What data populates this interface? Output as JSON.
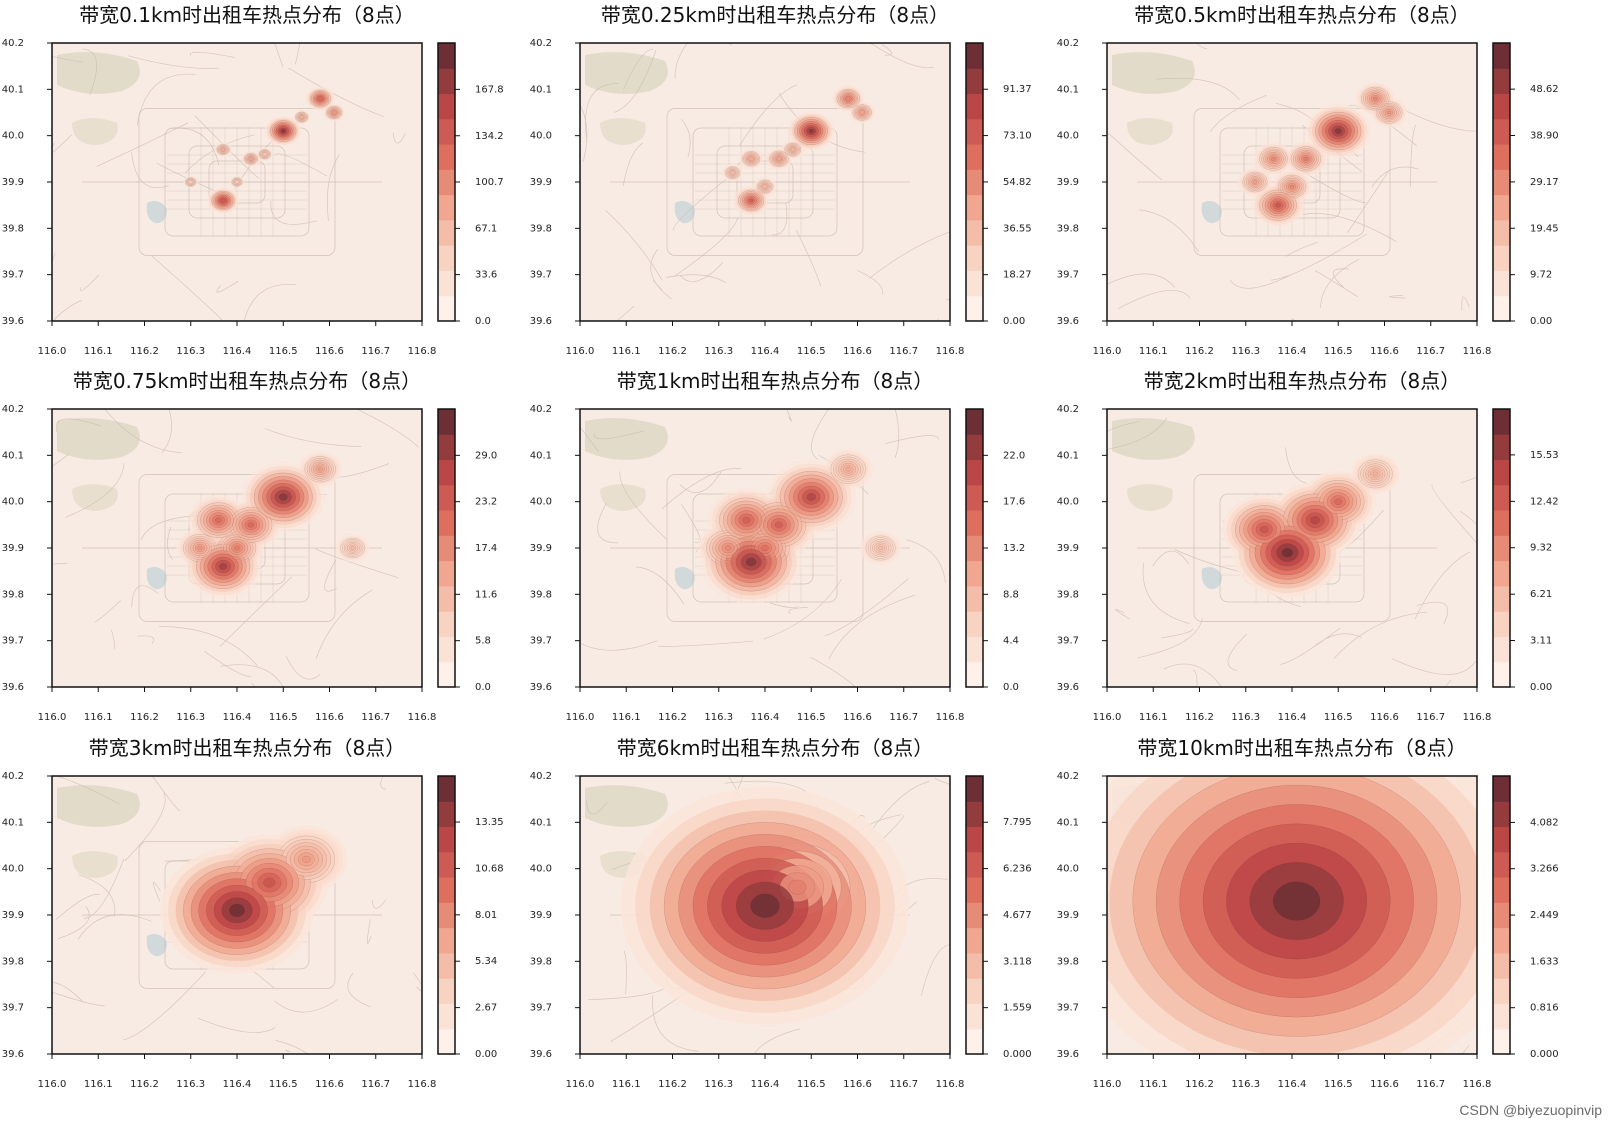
{
  "chart_data": [
    {
      "type": "heatmap",
      "title": "带宽0.1km时出租车热点分布（8点）",
      "bandwidth_km": 0.1,
      "xlim": [
        116.0,
        116.8
      ],
      "ylim": [
        39.6,
        40.2
      ],
      "x_ticks": [
        "116.0",
        "116.1",
        "116.2",
        "116.3",
        "116.4",
        "116.5",
        "116.6",
        "116.7",
        "116.8"
      ],
      "y_ticks": [
        "40.2",
        "40.1",
        "40.0",
        "39.9",
        "39.8",
        "39.7",
        "39.6"
      ],
      "colorbar_ticks": [
        "0.0",
        "33.6",
        "67.1",
        "100.7",
        "134.2",
        "167.8"
      ],
      "colorbar_max": 201.4,
      "hotspots": [
        {
          "lon": 116.5,
          "lat": 40.01,
          "w": 1.0
        },
        {
          "lon": 116.37,
          "lat": 39.86,
          "w": 0.85
        },
        {
          "lon": 116.58,
          "lat": 40.08,
          "w": 0.75
        },
        {
          "lon": 116.61,
          "lat": 40.05,
          "w": 0.5
        },
        {
          "lon": 116.37,
          "lat": 39.97,
          "w": 0.35
        },
        {
          "lon": 116.43,
          "lat": 39.95,
          "w": 0.4
        },
        {
          "lon": 116.46,
          "lat": 39.96,
          "w": 0.3
        },
        {
          "lon": 116.54,
          "lat": 40.04,
          "w": 0.35
        },
        {
          "lon": 116.3,
          "lat": 39.9,
          "w": 0.25
        },
        {
          "lon": 116.4,
          "lat": 39.9,
          "w": 0.25
        }
      ]
    },
    {
      "type": "heatmap",
      "title": "带宽0.25km时出租车热点分布（8点）",
      "bandwidth_km": 0.25,
      "xlim": [
        116.0,
        116.8
      ],
      "ylim": [
        39.6,
        40.2
      ],
      "x_ticks": [
        "116.0",
        "116.1",
        "116.2",
        "116.3",
        "116.4",
        "116.5",
        "116.6",
        "116.7",
        "116.8"
      ],
      "y_ticks": [
        "40.2",
        "40.1",
        "40.0",
        "39.9",
        "39.8",
        "39.7",
        "39.6"
      ],
      "colorbar_ticks": [
        "0.00",
        "18.27",
        "36.55",
        "54.82",
        "73.10",
        "91.37"
      ],
      "colorbar_max": 109.6,
      "hotspots": [
        {
          "lon": 116.5,
          "lat": 40.01,
          "w": 1.0
        },
        {
          "lon": 116.37,
          "lat": 39.86,
          "w": 0.7
        },
        {
          "lon": 116.58,
          "lat": 40.08,
          "w": 0.6
        },
        {
          "lon": 116.61,
          "lat": 40.05,
          "w": 0.45
        },
        {
          "lon": 116.37,
          "lat": 39.95,
          "w": 0.4
        },
        {
          "lon": 116.43,
          "lat": 39.95,
          "w": 0.45
        },
        {
          "lon": 116.46,
          "lat": 39.97,
          "w": 0.35
        },
        {
          "lon": 116.33,
          "lat": 39.92,
          "w": 0.3
        },
        {
          "lon": 116.4,
          "lat": 39.89,
          "w": 0.35
        }
      ]
    },
    {
      "type": "heatmap",
      "title": "带宽0.5km时出租车热点分布（8点）",
      "bandwidth_km": 0.5,
      "xlim": [
        116.0,
        116.8
      ],
      "ylim": [
        39.6,
        40.2
      ],
      "x_ticks": [
        "116.0",
        "116.1",
        "116.2",
        "116.3",
        "116.4",
        "116.5",
        "116.6",
        "116.7",
        "116.8"
      ],
      "y_ticks": [
        "40.2",
        "40.1",
        "40.0",
        "39.9",
        "39.8",
        "39.7",
        "39.6"
      ],
      "colorbar_ticks": [
        "0.00",
        "9.72",
        "19.45",
        "29.17",
        "38.90",
        "48.62"
      ],
      "colorbar_max": 58.3,
      "hotspots": [
        {
          "lon": 116.5,
          "lat": 40.01,
          "w": 1.0
        },
        {
          "lon": 116.37,
          "lat": 39.85,
          "w": 0.75
        },
        {
          "lon": 116.58,
          "lat": 40.08,
          "w": 0.5
        },
        {
          "lon": 116.61,
          "lat": 40.05,
          "w": 0.45
        },
        {
          "lon": 116.36,
          "lat": 39.95,
          "w": 0.5
        },
        {
          "lon": 116.43,
          "lat": 39.95,
          "w": 0.55
        },
        {
          "lon": 116.4,
          "lat": 39.89,
          "w": 0.5
        },
        {
          "lon": 116.32,
          "lat": 39.9,
          "w": 0.4
        }
      ]
    },
    {
      "type": "heatmap",
      "title": "带宽0.75km时出租车热点分布（8点）",
      "bandwidth_km": 0.75,
      "xlim": [
        116.0,
        116.8
      ],
      "ylim": [
        39.6,
        40.2
      ],
      "x_ticks": [
        "116.0",
        "116.1",
        "116.2",
        "116.3",
        "116.4",
        "116.5",
        "116.6",
        "116.7",
        "116.8"
      ],
      "y_ticks": [
        "40.2",
        "40.1",
        "40.0",
        "39.9",
        "39.8",
        "39.7",
        "39.6"
      ],
      "colorbar_ticks": [
        "0.0",
        "5.8",
        "11.6",
        "17.4",
        "23.2",
        "29.0"
      ],
      "colorbar_max": 34.8,
      "hotspots": [
        {
          "lon": 116.5,
          "lat": 40.01,
          "w": 1.0
        },
        {
          "lon": 116.37,
          "lat": 39.86,
          "w": 0.9
        },
        {
          "lon": 116.58,
          "lat": 40.07,
          "w": 0.4
        },
        {
          "lon": 116.36,
          "lat": 39.96,
          "w": 0.65
        },
        {
          "lon": 116.43,
          "lat": 39.95,
          "w": 0.65
        },
        {
          "lon": 116.4,
          "lat": 39.9,
          "w": 0.55
        },
        {
          "lon": 116.32,
          "lat": 39.9,
          "w": 0.45
        },
        {
          "lon": 116.65,
          "lat": 39.9,
          "w": 0.25
        }
      ]
    },
    {
      "type": "heatmap",
      "title": "带宽1km时出租车热点分布（8点）",
      "bandwidth_km": 1,
      "xlim": [
        116.0,
        116.8
      ],
      "ylim": [
        39.6,
        40.2
      ],
      "x_ticks": [
        "116.0",
        "116.1",
        "116.2",
        "116.3",
        "116.4",
        "116.5",
        "116.6",
        "116.7",
        "116.8"
      ],
      "y_ticks": [
        "40.2",
        "40.1",
        "40.0",
        "39.9",
        "39.8",
        "39.7",
        "39.6"
      ],
      "colorbar_ticks": [
        "0.0",
        "4.4",
        "8.8",
        "13.2",
        "17.6",
        "22.0"
      ],
      "colorbar_max": 26.4,
      "hotspots": [
        {
          "lon": 116.37,
          "lat": 39.87,
          "w": 1.0
        },
        {
          "lon": 116.5,
          "lat": 40.01,
          "w": 0.85
        },
        {
          "lon": 116.36,
          "lat": 39.96,
          "w": 0.7
        },
        {
          "lon": 116.43,
          "lat": 39.95,
          "w": 0.7
        },
        {
          "lon": 116.4,
          "lat": 39.9,
          "w": 0.6
        },
        {
          "lon": 116.32,
          "lat": 39.9,
          "w": 0.5
        },
        {
          "lon": 116.58,
          "lat": 40.07,
          "w": 0.35
        },
        {
          "lon": 116.65,
          "lat": 39.9,
          "w": 0.25
        }
      ]
    },
    {
      "type": "heatmap",
      "title": "带宽2km时出租车热点分布（8点）",
      "bandwidth_km": 2,
      "xlim": [
        116.0,
        116.8
      ],
      "ylim": [
        39.6,
        40.2
      ],
      "x_ticks": [
        "116.0",
        "116.1",
        "116.2",
        "116.3",
        "116.4",
        "116.5",
        "116.6",
        "116.7",
        "116.8"
      ],
      "y_ticks": [
        "40.2",
        "40.1",
        "40.0",
        "39.9",
        "39.8",
        "39.7",
        "39.6"
      ],
      "colorbar_ticks": [
        "0.00",
        "3.11",
        "6.21",
        "9.32",
        "12.42",
        "15.53"
      ],
      "colorbar_max": 18.6,
      "hotspots": [
        {
          "lon": 116.39,
          "lat": 39.89,
          "w": 1.0
        },
        {
          "lon": 116.45,
          "lat": 39.96,
          "w": 0.8
        },
        {
          "lon": 116.5,
          "lat": 40.0,
          "w": 0.6
        },
        {
          "lon": 116.34,
          "lat": 39.94,
          "w": 0.7
        },
        {
          "lon": 116.58,
          "lat": 40.06,
          "w": 0.3
        }
      ]
    },
    {
      "type": "heatmap",
      "title": "带宽3km时出租车热点分布（8点）",
      "bandwidth_km": 3,
      "xlim": [
        116.0,
        116.8
      ],
      "ylim": [
        39.6,
        40.2
      ],
      "x_ticks": [
        "116.0",
        "116.1",
        "116.2",
        "116.3",
        "116.4",
        "116.5",
        "116.6",
        "116.7",
        "116.8"
      ],
      "y_ticks": [
        "40.2",
        "40.1",
        "40.0",
        "39.9",
        "39.8",
        "39.7",
        "39.6"
      ],
      "colorbar_ticks": [
        "0.00",
        "2.67",
        "5.34",
        "8.01",
        "10.68",
        "13.35"
      ],
      "colorbar_max": 16.0,
      "hotspots": [
        {
          "lon": 116.4,
          "lat": 39.91,
          "w": 1.0
        },
        {
          "lon": 116.47,
          "lat": 39.97,
          "w": 0.7
        },
        {
          "lon": 116.55,
          "lat": 40.02,
          "w": 0.4
        }
      ]
    },
    {
      "type": "heatmap",
      "title": "带宽6km时出租车热点分布（8点）",
      "bandwidth_km": 6,
      "xlim": [
        116.0,
        116.8
      ],
      "ylim": [
        39.6,
        40.2
      ],
      "x_ticks": [
        "116.0",
        "116.1",
        "116.2",
        "116.3",
        "116.4",
        "116.5",
        "116.6",
        "116.7",
        "116.8"
      ],
      "y_ticks": [
        "40.2",
        "40.1",
        "40.0",
        "39.9",
        "39.8",
        "39.7",
        "39.6"
      ],
      "colorbar_ticks": [
        "0.000",
        "1.559",
        "3.118",
        "4.677",
        "6.236",
        "7.795"
      ],
      "colorbar_max": 9.35,
      "hotspots": [
        {
          "lon": 116.4,
          "lat": 39.92,
          "w": 1.0
        },
        {
          "lon": 116.47,
          "lat": 39.96,
          "w": 0.5
        }
      ]
    },
    {
      "type": "heatmap",
      "title": "带宽10km时出租车热点分布（8点）",
      "bandwidth_km": 10,
      "xlim": [
        116.0,
        116.8
      ],
      "ylim": [
        39.6,
        40.2
      ],
      "x_ticks": [
        "116.0",
        "116.1",
        "116.2",
        "116.3",
        "116.4",
        "116.5",
        "116.6",
        "116.7",
        "116.8"
      ],
      "y_ticks": [
        "40.2",
        "40.1",
        "40.0",
        "39.9",
        "39.8",
        "39.7",
        "39.6"
      ],
      "colorbar_ticks": [
        "0.000",
        "0.816",
        "1.633",
        "2.449",
        "3.266",
        "4.082"
      ],
      "colorbar_max": 4.9,
      "hotspots": [
        {
          "lon": 116.41,
          "lat": 39.93,
          "w": 1.0
        }
      ]
    }
  ],
  "colors": {
    "low": "#fdeee6",
    "high": "#6d2f35",
    "axis": "#111111",
    "map_bg": "#f8ebe3",
    "park": "#dcd5c0",
    "road": "#c7b8ae"
  },
  "watermark": "CSDN @biyezuopinvip"
}
